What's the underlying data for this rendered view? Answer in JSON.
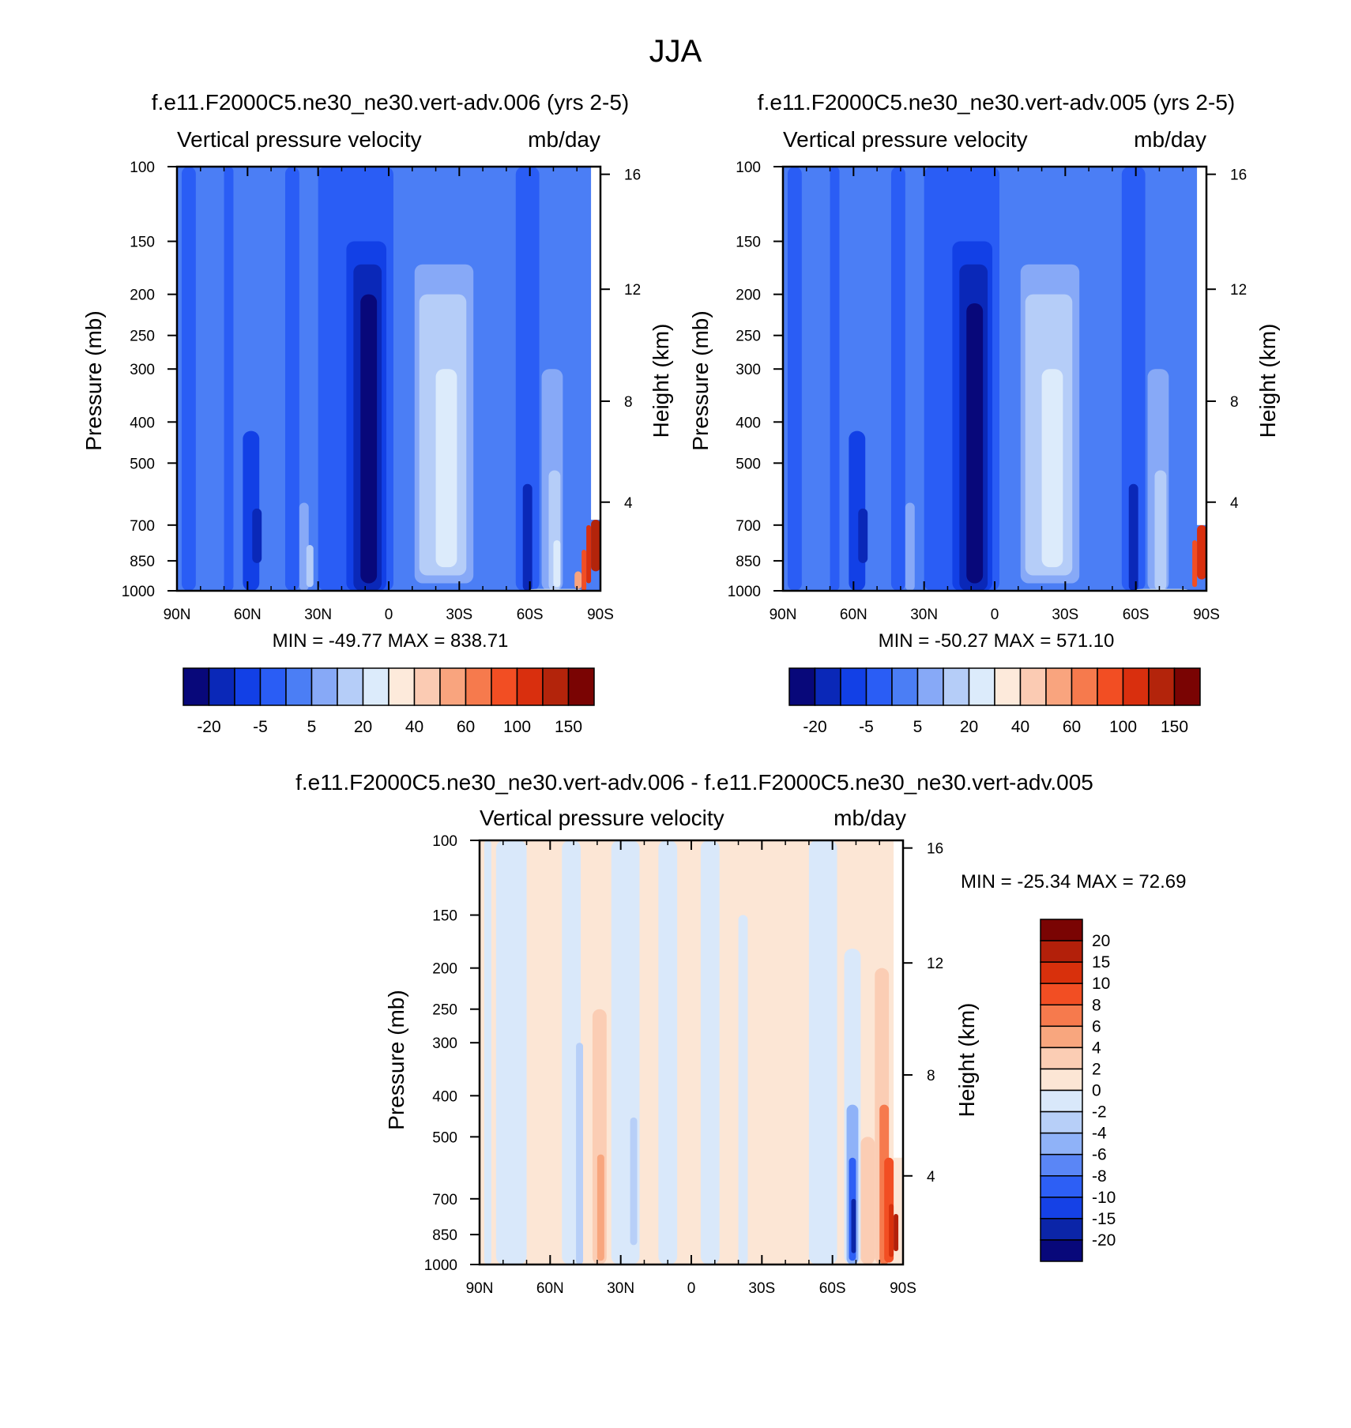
{
  "figure": {
    "title": "JJA"
  },
  "palettes": {
    "full": [
      "#08087a",
      "#0a28b8",
      "#1240e6",
      "#2a5df5",
      "#4b7ef5",
      "#87a9f7",
      "#b5cdf8",
      "#dcebfb",
      "#fdeadb",
      "#fbcbb3",
      "#f9a47e",
      "#f67a4d",
      "#f24e23",
      "#d92f0e",
      "#b3240b",
      "#7a0403"
    ],
    "diff": [
      "#08087a",
      "#0b25a8",
      "#1541e6",
      "#2d5ff5",
      "#5a86f6",
      "#8fb2f8",
      "#b7cff8",
      "#d9e8fa",
      "#fce6d5",
      "#fbcdb4",
      "#f8a67e",
      "#f67a4d",
      "#f24e23",
      "#d8300c",
      "#b3200a",
      "#7a0403"
    ]
  },
  "chart_data": [
    {
      "id": "panel_006",
      "type": "heatmap",
      "title": "f.e11.F2000C5.ne30_ne30.vert-adv.006 (yrs 2-5)",
      "subtitle_left": "Vertical pressure velocity",
      "subtitle_right": "mb/day",
      "xlabel": "",
      "ylabel": "Pressure (mb)",
      "y2label": "Height (km)",
      "x_ticks": [
        "90N",
        "60N",
        "30N",
        "0",
        "30S",
        "60S",
        "90S"
      ],
      "y_ticks": [
        100,
        150,
        200,
        250,
        300,
        400,
        500,
        700,
        850,
        1000
      ],
      "y2_ticks": [
        4,
        8,
        12,
        16
      ],
      "xlim": [
        90,
        -90
      ],
      "ylim": [
        1000,
        100
      ],
      "stats": "MIN = -49.77  MAX = 838.71",
      "colorbar": {
        "orientation": "horizontal",
        "palette": "full",
        "labels": [
          "-20",
          "-5",
          "5",
          "20",
          "40",
          "60",
          "100",
          "150"
        ]
      },
      "field": {
        "background": 4,
        "bands": [
          {
            "lats": [
              88,
              82
            ],
            "p": [
              1000,
              100
            ],
            "c": 3
          },
          {
            "lats": [
              70,
              66
            ],
            "p": [
              1000,
              100
            ],
            "c": 3
          },
          {
            "lats": [
              62,
              55
            ],
            "p": [
              1000,
              420
            ],
            "c": 2
          },
          {
            "lats": [
              58,
              54
            ],
            "p": [
              860,
              640
            ],
            "c": 1
          },
          {
            "lats": [
              44,
              38
            ],
            "p": [
              1000,
              100
            ],
            "c": 3
          },
          {
            "lats": [
              38,
              34
            ],
            "p": [
              1000,
              620
            ],
            "c": 5
          },
          {
            "lats": [
              35,
              32
            ],
            "p": [
              980,
              780
            ],
            "c": 6
          },
          {
            "lats": [
              30,
              -2
            ],
            "p": [
              1000,
              100
            ],
            "c": 3
          },
          {
            "lats": [
              18,
              1
            ],
            "p": [
              1000,
              150
            ],
            "c": 2
          },
          {
            "lats": [
              15,
              3
            ],
            "p": [
              1000,
              170
            ],
            "c": 1
          },
          {
            "lats": [
              12,
              5
            ],
            "p": [
              960,
              200
            ],
            "c": 0
          },
          {
            "lats": [
              -11,
              -36
            ],
            "p": [
              960,
              170
            ],
            "c": 5
          },
          {
            "lats": [
              -13,
              -33
            ],
            "p": [
              920,
              200
            ],
            "c": 6
          },
          {
            "lats": [
              -20,
              -29
            ],
            "p": [
              880,
              300
            ],
            "c": 7
          },
          {
            "lats": [
              -54,
              -64
            ],
            "p": [
              1000,
              100
            ],
            "c": 3
          },
          {
            "lats": [
              -57,
              -61
            ],
            "p": [
              1000,
              560
            ],
            "c": 1
          },
          {
            "lats": [
              -65,
              -74
            ],
            "p": [
              1000,
              300
            ],
            "c": 5
          },
          {
            "lats": [
              -68,
              -73
            ],
            "p": [
              1000,
              520
            ],
            "c": 6
          },
          {
            "lats": [
              -70,
              -73
            ],
            "p": [
              980,
              760
            ],
            "c": 7
          },
          {
            "lats": [
              -79,
              -82
            ],
            "p": [
              990,
              900
            ],
            "c": 10
          },
          {
            "lats": [
              -82,
              -84
            ],
            "p": [
              1000,
              800
            ],
            "c": 12
          },
          {
            "lats": [
              -84,
              -86
            ],
            "p": [
              960,
              700
            ],
            "c": 13
          },
          {
            "lats": [
              -86,
              -90
            ],
            "p": [
              900,
              680
            ],
            "c": 14
          },
          {
            "lats": [
              -60,
              -82
            ],
            "p": [
              1000,
              990
            ],
            "c": 7
          }
        ],
        "mask": {
          "lats": [
            -86,
            -90
          ],
          "p": [
            680,
            100
          ]
        }
      }
    },
    {
      "id": "panel_005",
      "type": "heatmap",
      "title": "f.e11.F2000C5.ne30_ne30.vert-adv.005 (yrs 2-5)",
      "subtitle_left": "Vertical pressure velocity",
      "subtitle_right": "mb/day",
      "xlabel": "",
      "ylabel": "Pressure (mb)",
      "y2label": "Height (km)",
      "x_ticks": [
        "90N",
        "60N",
        "30N",
        "0",
        "30S",
        "60S",
        "90S"
      ],
      "y_ticks": [
        100,
        150,
        200,
        250,
        300,
        400,
        500,
        700,
        850,
        1000
      ],
      "y2_ticks": [
        4,
        8,
        12,
        16
      ],
      "xlim": [
        90,
        -90
      ],
      "ylim": [
        1000,
        100
      ],
      "stats": "MIN = -50.27  MAX = 571.10",
      "colorbar": {
        "orientation": "horizontal",
        "palette": "full",
        "labels": [
          "-20",
          "-5",
          "5",
          "20",
          "40",
          "60",
          "100",
          "150"
        ]
      },
      "field": {
        "background": 4,
        "bands": [
          {
            "lats": [
              88,
              82
            ],
            "p": [
              1000,
              100
            ],
            "c": 3
          },
          {
            "lats": [
              70,
              66
            ],
            "p": [
              1000,
              100
            ],
            "c": 3
          },
          {
            "lats": [
              62,
              55
            ],
            "p": [
              1000,
              420
            ],
            "c": 2
          },
          {
            "lats": [
              58,
              54
            ],
            "p": [
              860,
              640
            ],
            "c": 1
          },
          {
            "lats": [
              44,
              38
            ],
            "p": [
              1000,
              100
            ],
            "c": 3
          },
          {
            "lats": [
              38,
              34
            ],
            "p": [
              1000,
              620
            ],
            "c": 5
          },
          {
            "lats": [
              30,
              -2
            ],
            "p": [
              1000,
              100
            ],
            "c": 3
          },
          {
            "lats": [
              18,
              1
            ],
            "p": [
              1000,
              150
            ],
            "c": 2
          },
          {
            "lats": [
              15,
              3
            ],
            "p": [
              1000,
              170
            ],
            "c": 1
          },
          {
            "lats": [
              12,
              5
            ],
            "p": [
              960,
              210
            ],
            "c": 0
          },
          {
            "lats": [
              -11,
              -36
            ],
            "p": [
              960,
              170
            ],
            "c": 5
          },
          {
            "lats": [
              -13,
              -33
            ],
            "p": [
              920,
              200
            ],
            "c": 6
          },
          {
            "lats": [
              -20,
              -29
            ],
            "p": [
              880,
              300
            ],
            "c": 7
          },
          {
            "lats": [
              -54,
              -64
            ],
            "p": [
              1000,
              100
            ],
            "c": 3
          },
          {
            "lats": [
              -57,
              -61
            ],
            "p": [
              1000,
              560
            ],
            "c": 1
          },
          {
            "lats": [
              -65,
              -74
            ],
            "p": [
              1000,
              300
            ],
            "c": 5
          },
          {
            "lats": [
              -68,
              -73
            ],
            "p": [
              1000,
              520
            ],
            "c": 6
          },
          {
            "lats": [
              -84,
              -86
            ],
            "p": [
              980,
              760
            ],
            "c": 12
          },
          {
            "lats": [
              -86,
              -90
            ],
            "p": [
              940,
              700
            ],
            "c": 13
          },
          {
            "lats": [
              -60,
              -82
            ],
            "p": [
              1000,
              990
            ],
            "c": 7
          }
        ],
        "mask": {
          "lats": [
            -86,
            -90
          ],
          "p": [
            700,
            100
          ]
        }
      }
    },
    {
      "id": "panel_diff",
      "type": "heatmap",
      "title": "f.e11.F2000C5.ne30_ne30.vert-adv.006 - f.e11.F2000C5.ne30_ne30.vert-adv.005",
      "subtitle_left": "Vertical pressure velocity",
      "subtitle_right": "mb/day",
      "xlabel": "",
      "ylabel": "Pressure (mb)",
      "y2label": "Height (km)",
      "x_ticks": [
        "90N",
        "60N",
        "30N",
        "0",
        "30S",
        "60S",
        "90S"
      ],
      "y_ticks": [
        100,
        150,
        200,
        250,
        300,
        400,
        500,
        700,
        850,
        1000
      ],
      "y2_ticks": [
        4,
        8,
        12,
        16
      ],
      "xlim": [
        90,
        -90
      ],
      "ylim": [
        1000,
        100
      ],
      "stats": "MIN = -25.34  MAX =  72.69",
      "colorbar": {
        "orientation": "vertical",
        "palette": "diff",
        "labels": [
          "20",
          "15",
          "10",
          "8",
          "6",
          "4",
          "2",
          "0",
          "-2",
          "-4",
          "-6",
          "-8",
          "-10",
          "-15",
          "-20"
        ]
      },
      "field": {
        "background": 8,
        "bands": [
          {
            "lats": [
              88,
              85
            ],
            "p": [
              1000,
              100
            ],
            "c": 7
          },
          {
            "lats": [
              83,
              70
            ],
            "p": [
              1000,
              100
            ],
            "c": 7
          },
          {
            "lats": [
              55,
              47
            ],
            "p": [
              1000,
              100
            ],
            "c": 7
          },
          {
            "lats": [
              49,
              46
            ],
            "p": [
              1000,
              300
            ],
            "c": 6
          },
          {
            "lats": [
              42,
              36
            ],
            "p": [
              1000,
              250
            ],
            "c": 9
          },
          {
            "lats": [
              40,
              37
            ],
            "p": [
              980,
              550
            ],
            "c": 10
          },
          {
            "lats": [
              34,
              22
            ],
            "p": [
              1000,
              100
            ],
            "c": 7
          },
          {
            "lats": [
              26,
              23
            ],
            "p": [
              900,
              450
            ],
            "c": 6
          },
          {
            "lats": [
              14,
              6
            ],
            "p": [
              1000,
              100
            ],
            "c": 7
          },
          {
            "lats": [
              -4,
              -12
            ],
            "p": [
              1000,
              100
            ],
            "c": 7
          },
          {
            "lats": [
              -20,
              -24
            ],
            "p": [
              1000,
              150
            ],
            "c": 7
          },
          {
            "lats": [
              -30,
              -50
            ],
            "p": [
              1000,
              100
            ],
            "c": 8
          },
          {
            "lats": [
              -50,
              -62
            ],
            "p": [
              1000,
              100
            ],
            "c": 7
          },
          {
            "lats": [
              -62,
              -68
            ],
            "p": [
              1000,
              100
            ],
            "c": 8
          },
          {
            "lats": [
              -65,
              -72
            ],
            "p": [
              1000,
              180
            ],
            "c": 7
          },
          {
            "lats": [
              -66,
              -71
            ],
            "p": [
              1000,
              420
            ],
            "c": 5
          },
          {
            "lats": [
              -67,
              -70
            ],
            "p": [
              980,
              560
            ],
            "c": 3
          },
          {
            "lats": [
              -68,
              -70
            ],
            "p": [
              940,
              700
            ],
            "c": 1
          },
          {
            "lats": [
              -72,
              -78
            ],
            "p": [
              1000,
              500
            ],
            "c": 9
          },
          {
            "lats": [
              -78,
              -84
            ],
            "p": [
              1000,
              200
            ],
            "c": 9
          },
          {
            "lats": [
              -80,
              -84
            ],
            "p": [
              1000,
              420
            ],
            "c": 11
          },
          {
            "lats": [
              -82,
              -86
            ],
            "p": [
              990,
              560
            ],
            "c": 12
          },
          {
            "lats": [
              -84,
              -86
            ],
            "p": [
              960,
              720
            ],
            "c": 13
          },
          {
            "lats": [
              -86,
              -88
            ],
            "p": [
              930,
              760
            ],
            "c": 14
          }
        ],
        "mask": {
          "lats": [
            -86,
            -90
          ],
          "p": [
            560,
            100
          ]
        }
      }
    }
  ]
}
